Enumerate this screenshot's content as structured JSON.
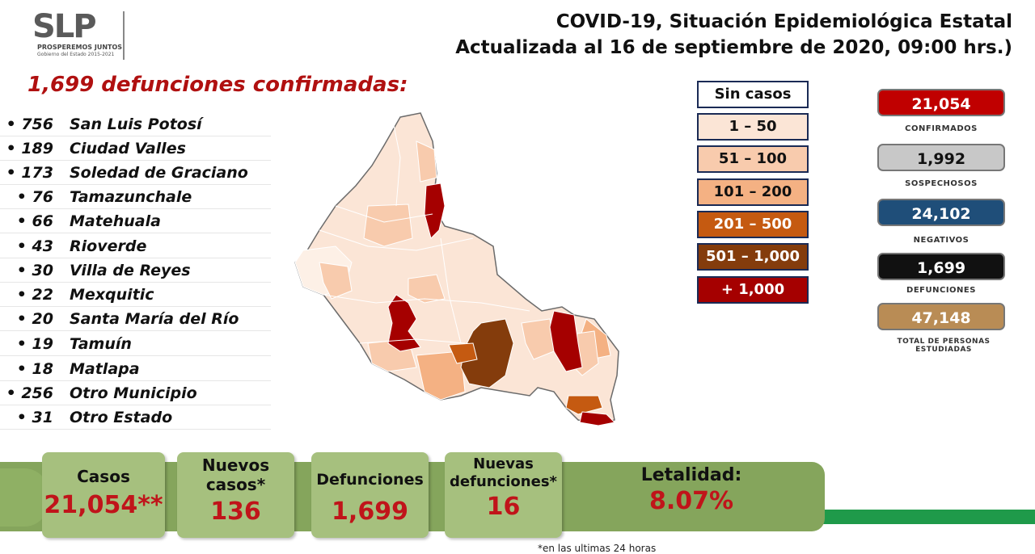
{
  "logo": {
    "mark": "SLP",
    "line1": "PROSPEREMOS JUNTOS",
    "line2": "Gobierno del Estado 2015-2021"
  },
  "header": {
    "title_line1": "COVID-19, Situación Epidemiológica Estatal",
    "title_line2": "Actualizada al 16 de septiembre de 2020, 09:00 hrs.)"
  },
  "deaths_heading": "1,699 defunciones confirmadas:",
  "municipalities": [
    {
      "count": "• 756",
      "name": "San Luis Potosí"
    },
    {
      "count": "• 189",
      "name": "Ciudad Valles"
    },
    {
      "count": "• 173",
      "name": "Soledad de Graciano"
    },
    {
      "count": "• 76",
      "name": "Tamazunchale"
    },
    {
      "count": "• 66",
      "name": "Matehuala"
    },
    {
      "count": "• 43",
      "name": "Rioverde"
    },
    {
      "count": "• 30",
      "name": "Villa de Reyes"
    },
    {
      "count": "• 22",
      "name": "Mexquitic"
    },
    {
      "count": "• 20",
      "name": "Santa María del Río"
    },
    {
      "count": "• 19",
      "name": "Tamuín"
    },
    {
      "count": "• 18",
      "name": "Matlapa"
    },
    {
      "count": "• 256",
      "name": "Otro Municipio"
    },
    {
      "count": "• 31",
      "name": "Otro Estado"
    }
  ],
  "legend": [
    {
      "label": "Sin casos",
      "color": "#ffffff",
      "text_color": "#111111"
    },
    {
      "label": "1 – 50",
      "color": "#fbe5d6",
      "text_color": "#111111"
    },
    {
      "label": "51 – 100",
      "color": "#f8cbad",
      "text_color": "#111111"
    },
    {
      "label": "101 – 200",
      "color": "#f4b183",
      "text_color": "#111111"
    },
    {
      "label": "201 – 500",
      "color": "#c55a11",
      "text_color": "#ffffff"
    },
    {
      "label": "501 – 1,000",
      "color": "#843c0c",
      "text_color": "#ffffff"
    },
    {
      "label": "+ 1,000",
      "color": "#a50000",
      "text_color": "#ffffff"
    }
  ],
  "stats": [
    {
      "value": "21,054",
      "label": "CONFIRMADOS",
      "color": "#c00000",
      "text_color": "#ffffff"
    },
    {
      "value": "1,992",
      "label": "SOSPECHOSOS",
      "color": "#c8c8c8",
      "text_color": "#111111"
    },
    {
      "value": "24,102",
      "label": "NEGATIVOS",
      "color": "#1f4e79",
      "text_color": "#ffffff"
    },
    {
      "value": "1,699",
      "label": "DEFUNCIONES",
      "color": "#111111",
      "text_color": "#ffffff"
    },
    {
      "value": "47,148",
      "label": "TOTAL DE PERSONAS ESTUDIADAS",
      "color": "#b98c55",
      "text_color": "#ffffff"
    }
  ],
  "summary": {
    "casos_label": "Casos",
    "casos_value": "21,054**",
    "nuevos_casos_label": "Nuevos casos*",
    "nuevos_casos_value": "136",
    "defunciones_label": "Defunciones",
    "defunciones_value": "1,699",
    "nuevas_defunciones_label": "Nuevas defunciones*",
    "nuevas_defunciones_value": "16",
    "letalidad_label": "Letalidad:",
    "letalidad_value": "8.07%"
  },
  "footnote": "*en las ultimas 24 horas"
}
